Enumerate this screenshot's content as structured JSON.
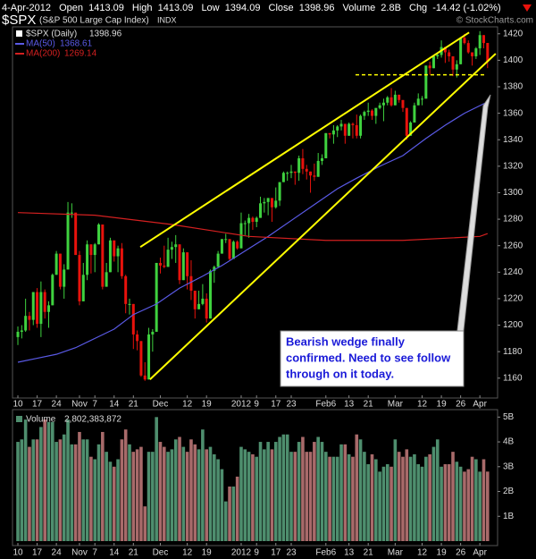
{
  "chart_data": [
    {
      "type": "candlestick",
      "title": "$SPX",
      "subtitle": "(S&P 500 Large Cap Index)",
      "exchange": "INDX",
      "copyright": "© StockCharts.com",
      "header": {
        "date": "4-Apr-2012",
        "labels": [
          "Open",
          "High",
          "Low",
          "Close",
          "Volume",
          "Chg"
        ],
        "volume": "2.8B",
        "change": "-14.42 (-1.02%)"
      },
      "name": "$SPX (Daily)",
      "up_color": "#3fd23f",
      "down_color": "#e8120c",
      "open": [
        1191,
        1195,
        1196,
        1207,
        1204,
        1225,
        1201,
        1225,
        1210,
        1215,
        1238,
        1254,
        1229,
        1242,
        1285,
        1285,
        1253,
        1218,
        1238,
        1261,
        1253,
        1261,
        1276,
        1229,
        1240,
        1264,
        1252,
        1258,
        1237,
        1216,
        1216,
        1193,
        1188,
        1162,
        1159,
        1193,
        1195,
        1247,
        1245,
        1244,
        1257,
        1259,
        1261,
        1234,
        1255,
        1237,
        1226,
        1212,
        1216,
        1220,
        1205,
        1241,
        1244,
        1254,
        1265,
        1265,
        1250,
        1263,
        1258,
        1277,
        1277,
        1281,
        1278,
        1281,
        1292,
        1293,
        1296,
        1289,
        1294,
        1308,
        1315,
        1315,
        1316,
        1315,
        1326,
        1318,
        1316,
        1313,
        1312,
        1324,
        1326,
        1345,
        1344,
        1347,
        1350,
        1352,
        1343,
        1352,
        1351,
        1343,
        1358,
        1361,
        1362,
        1358,
        1364,
        1366,
        1368,
        1372,
        1366,
        1374,
        1370,
        1364,
        1343,
        1353,
        1366,
        1371,
        1371,
        1396,
        1394,
        1403,
        1404,
        1410,
        1406,
        1403,
        1393,
        1397,
        1417,
        1413,
        1406,
        1403,
        1409,
        1419,
        1413.09
      ],
      "high": [
        1199,
        1200,
        1220,
        1210,
        1225,
        1228,
        1233,
        1227,
        1218,
        1239,
        1256,
        1254,
        1246,
        1293,
        1292,
        1284,
        1256,
        1247,
        1264,
        1261,
        1262,
        1277,
        1276,
        1247,
        1266,
        1264,
        1260,
        1262,
        1238,
        1220,
        1216,
        1196,
        1188,
        1172,
        1198,
        1197,
        1247,
        1251,
        1260,
        1266,
        1263,
        1268,
        1261,
        1258,
        1255,
        1249,
        1226,
        1226,
        1231,
        1224,
        1242,
        1245,
        1256,
        1265,
        1269,
        1265,
        1264,
        1264,
        1285,
        1279,
        1284,
        1282,
        1282,
        1297,
        1296,
        1296,
        1296,
        1304,
        1308,
        1316,
        1316,
        1321,
        1316,
        1328,
        1333,
        1321,
        1316,
        1322,
        1330,
        1329,
        1345,
        1345,
        1351,
        1351,
        1355,
        1352,
        1353,
        1353,
        1359,
        1359,
        1362,
        1368,
        1363,
        1364,
        1368,
        1371,
        1373,
        1379,
        1377,
        1374,
        1370,
        1364,
        1354,
        1368,
        1375,
        1373,
        1396,
        1399,
        1403,
        1405,
        1415,
        1410,
        1408,
        1403,
        1400,
        1417,
        1420,
        1415,
        1406,
        1410,
        1422,
        1419,
        1413.09
      ],
      "low": [
        1185,
        1190,
        1195,
        1196,
        1200,
        1198,
        1191,
        1205,
        1198,
        1215,
        1238,
        1227,
        1220,
        1242,
        1281,
        1253,
        1215,
        1218,
        1234,
        1239,
        1240,
        1261,
        1227,
        1229,
        1240,
        1248,
        1240,
        1235,
        1209,
        1208,
        1182,
        1181,
        1161,
        1158,
        1159,
        1180,
        1195,
        1239,
        1243,
        1244,
        1250,
        1247,
        1231,
        1234,
        1227,
        1219,
        1205,
        1212,
        1215,
        1202,
        1205,
        1232,
        1244,
        1254,
        1262,
        1249,
        1250,
        1257,
        1258,
        1268,
        1266,
        1272,
        1274,
        1281,
        1285,
        1283,
        1278,
        1288,
        1290,
        1308,
        1309,
        1311,
        1306,
        1309,
        1314,
        1310,
        1300,
        1309,
        1312,
        1321,
        1326,
        1341,
        1337,
        1342,
        1347,
        1337,
        1343,
        1341,
        1341,
        1341,
        1355,
        1358,
        1355,
        1352,
        1363,
        1354,
        1366,
        1365,
        1366,
        1368,
        1361,
        1340,
        1343,
        1353,
        1366,
        1366,
        1371,
        1389,
        1394,
        1401,
        1402,
        1398,
        1399,
        1388,
        1387,
        1397,
        1412,
        1405,
        1396,
        1401,
        1404,
        1409,
        1394.09
      ],
      "close": [
        1195,
        1196,
        1207,
        1204,
        1225,
        1201,
        1225,
        1210,
        1215,
        1238,
        1254,
        1229,
        1242,
        1285,
        1285,
        1253,
        1218,
        1238,
        1261,
        1253,
        1261,
        1276,
        1229,
        1240,
        1264,
        1252,
        1258,
        1237,
        1216,
        1216,
        1193,
        1188,
        1162,
        1159,
        1193,
        1195,
        1247,
        1245,
        1244,
        1257,
        1259,
        1261,
        1234,
        1255,
        1237,
        1226,
        1212,
        1216,
        1220,
        1205,
        1241,
        1244,
        1254,
        1265,
        1265,
        1250,
        1263,
        1258,
        1277,
        1277,
        1281,
        1278,
        1281,
        1292,
        1293,
        1296,
        1289,
        1294,
        1308,
        1315,
        1315,
        1316,
        1315,
        1326,
        1318,
        1316,
        1313,
        1312,
        1324,
        1326,
        1345,
        1344,
        1347,
        1350,
        1352,
        1343,
        1352,
        1351,
        1343,
        1358,
        1361,
        1362,
        1358,
        1364,
        1366,
        1368,
        1372,
        1366,
        1374,
        1370,
        1364,
        1343,
        1353,
        1366,
        1371,
        1371,
        1396,
        1394,
        1403,
        1404,
        1410,
        1406,
        1403,
        1393,
        1397,
        1417,
        1413,
        1406,
        1403,
        1409,
        1419,
        1413,
        1398.96
      ],
      "series": [
        {
          "name": "MA(50)",
          "color": "#5a5ae6",
          "x": [
            0,
            5,
            10,
            15,
            20,
            25,
            30,
            36,
            42,
            48,
            53,
            59,
            65,
            71,
            77,
            83,
            88,
            94,
            100,
            106,
            111,
            116,
            122
          ],
          "values": [
            1172,
            1175,
            1178,
            1183,
            1190,
            1197,
            1208,
            1216,
            1228,
            1237,
            1245,
            1256,
            1267,
            1279,
            1291,
            1303,
            1311,
            1320,
            1328,
            1341,
            1351,
            1360,
            1368.61
          ]
        },
        {
          "name": "MA(200)",
          "color": "#d42020",
          "x": [
            0,
            20,
            40,
            60,
            80,
            100,
            120,
            122
          ],
          "values": [
            1285,
            1283,
            1276,
            1267,
            1264,
            1264,
            1267,
            1269.14
          ]
        }
      ],
      "trendlines": [
        {
          "color": "#ffff00",
          "x": [
            31.8,
            117.2
          ],
          "y": [
            1259,
            1421
          ]
        },
        {
          "color": "#ffff00",
          "x": [
            34.3,
            124.1
          ],
          "y": [
            1159,
            1405
          ]
        },
        {
          "color": "#ffff00",
          "dashed": true,
          "x": [
            87.7,
            121.8
          ],
          "y": [
            1389,
            1389
          ]
        }
      ],
      "annotation": [
        "Bearish wedge finally",
        "confirmed. Need to see follow",
        "through on it today."
      ],
      "xlim": [
        -0.7,
        124.6
      ],
      "xticks": [
        {
          "value": 0,
          "label": "10"
        },
        {
          "value": 5,
          "label": "17"
        },
        {
          "value": 10,
          "label": "24"
        },
        {
          "value": 16,
          "label": "Nov"
        },
        {
          "value": 20,
          "label": "7"
        },
        {
          "value": 25,
          "label": "14"
        },
        {
          "value": 30,
          "label": "21"
        },
        {
          "value": 37,
          "label": "Dec"
        },
        {
          "value": 44,
          "label": "12"
        },
        {
          "value": 49,
          "label": "19"
        },
        {
          "value": 58,
          "label": "2012"
        },
        {
          "value": 62,
          "label": "9"
        },
        {
          "value": 67,
          "label": "17"
        },
        {
          "value": 71,
          "label": "23"
        },
        {
          "value": 80,
          "label": "Feb6"
        },
        {
          "value": 86,
          "label": "13"
        },
        {
          "value": 91,
          "label": "21"
        },
        {
          "value": 98,
          "label": "Mar"
        },
        {
          "value": 105,
          "label": "12"
        },
        {
          "value": 110,
          "label": "19"
        },
        {
          "value": 115,
          "label": "26"
        },
        {
          "value": 120,
          "label": "Apr"
        }
      ],
      "ylim": [
        1145,
        1432
      ],
      "yticks": [
        1160,
        1180,
        1200,
        1220,
        1240,
        1260,
        1280,
        1300,
        1320,
        1340,
        1360,
        1380,
        1400,
        1420
      ]
    },
    {
      "type": "bar",
      "name": "Volume",
      "last_label": "2,802,383,872",
      "up_color": "#4e8e6e",
      "down_color": "#a86a6a",
      "values": [
        4.0,
        4.1,
        4.9,
        3.8,
        4.1,
        4.1,
        4.6,
        4.9,
        4.8,
        4.8,
        4.0,
        4.1,
        4.3,
        4.9,
        3.9,
        3.9,
        4.4,
        4.1,
        4.1,
        3.4,
        3.3,
        3.9,
        4.4,
        3.6,
        3.2,
        3.0,
        3.3,
        4.1,
        4.5,
        3.9,
        3.6,
        3.7,
        3.8,
        1.4,
        3.6,
        3.6,
        5.0,
        4.0,
        3.8,
        3.6,
        3.7,
        4.1,
        4.2,
        3.8,
        3.6,
        4.1,
        3.9,
        3.7,
        4.5,
        3.7,
        3.8,
        3.5,
        3.3,
        2.9,
        1.6,
        2.2,
        2.2,
        2.6,
        3.8,
        3.7,
        3.6,
        3.5,
        3.4,
        4.0,
        3.7,
        4.0,
        3.7,
        4.0,
        4.2,
        4.3,
        4.3,
        3.6,
        3.6,
        4.0,
        4.2,
        3.6,
        3.6,
        4.0,
        4.2,
        4.0,
        3.6,
        3.4,
        3.4,
        3.4,
        3.9,
        3.9,
        3.5,
        3.4,
        4.3,
        4.1,
        3.6,
        3.1,
        3.5,
        3.3,
        2.8,
        3.0,
        3.1,
        3.0,
        4.1,
        3.6,
        3.4,
        3.7,
        3.4,
        3.5,
        3.1,
        3.0,
        3.4,
        3.5,
        3.8,
        4.1,
        3.0,
        3.1,
        3.1,
        3.6,
        3.2,
        3.0,
        2.8,
        2.9,
        3.4,
        3.3,
        2.8,
        3.3,
        2.802383872
      ],
      "xlim": [
        -0.7,
        124.6
      ],
      "xticks": [
        {
          "value": 0,
          "label": "10"
        },
        {
          "value": 5,
          "label": "17"
        },
        {
          "value": 10,
          "label": "24"
        },
        {
          "value": 16,
          "label": "Nov"
        },
        {
          "value": 20,
          "label": "7"
        },
        {
          "value": 25,
          "label": "14"
        },
        {
          "value": 30,
          "label": "21"
        },
        {
          "value": 37,
          "label": "Dec"
        },
        {
          "value": 44,
          "label": "12"
        },
        {
          "value": 49,
          "label": "19"
        },
        {
          "value": 58,
          "label": "2012"
        },
        {
          "value": 62,
          "label": "9"
        },
        {
          "value": 67,
          "label": "17"
        },
        {
          "value": 71,
          "label": "23"
        },
        {
          "value": 80,
          "label": "Feb6"
        },
        {
          "value": 86,
          "label": "13"
        },
        {
          "value": 91,
          "label": "21"
        },
        {
          "value": 98,
          "label": "Mar"
        },
        {
          "value": 105,
          "label": "12"
        },
        {
          "value": 110,
          "label": "19"
        },
        {
          "value": 115,
          "label": "26"
        },
        {
          "value": 120,
          "label": "Apr"
        }
      ],
      "ylim": [
        0,
        5.3
      ],
      "yticks": [
        {
          "value": 1,
          "label": "1B"
        },
        {
          "value": 2,
          "label": "2B"
        },
        {
          "value": 3,
          "label": "3B"
        },
        {
          "value": 4,
          "label": "4B"
        },
        {
          "value": 5,
          "label": "5B"
        }
      ]
    }
  ]
}
